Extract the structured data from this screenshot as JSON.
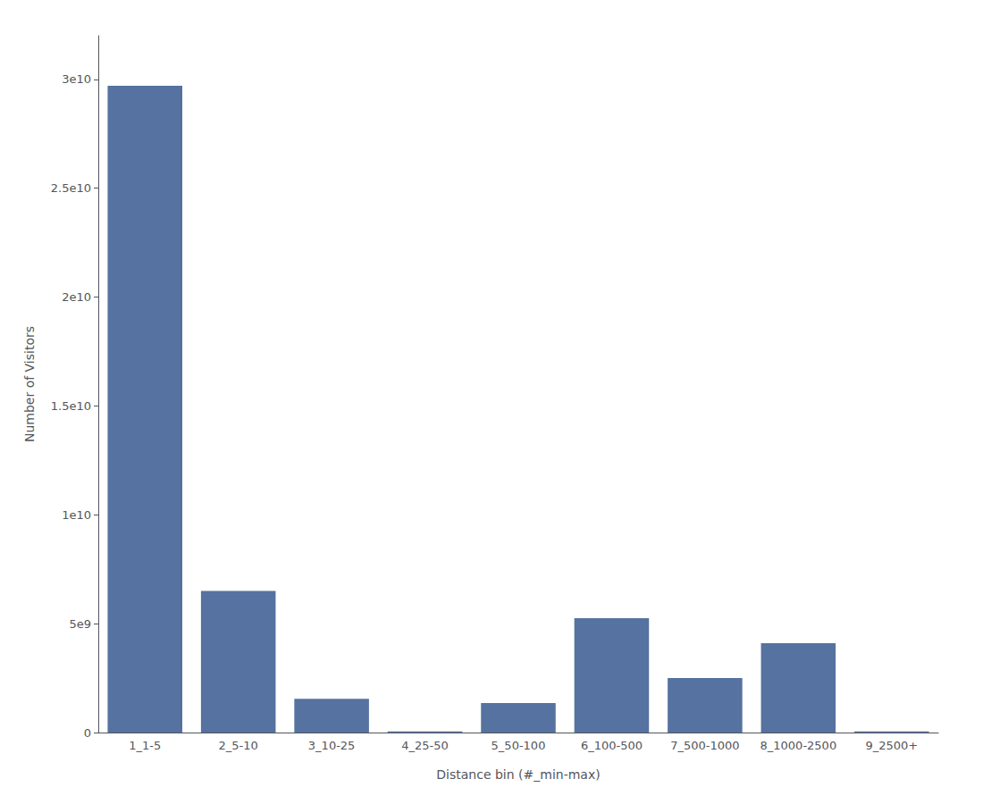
{
  "chart_data": {
    "type": "bar",
    "categories": [
      "1_1-5",
      "2_5-10",
      "3_10-25",
      "4_25-50",
      "5_50-100",
      "6_100-500",
      "7_500-1000",
      "8_1000-2500",
      "9_2500+"
    ],
    "values": [
      29700000000.0,
      6500000000.0,
      1550000000.0,
      50000000.0,
      1350000000.0,
      5250000000.0,
      2500000000.0,
      4100000000.0,
      50000000.0
    ],
    "color": "#5572a0",
    "xlabel": "Distance bin (#_min-max)",
    "ylabel": "Number of Visitors",
    "ylim": [
      0,
      32000000000.0
    ],
    "yticks": [
      0,
      {
        "value": 5000000000.0,
        "label": "5e9"
      },
      {
        "value": 10000000000.0,
        "label": "1e10"
      },
      {
        "value": 15000000000.0,
        "label": "1.5e10"
      },
      {
        "value": 20000000000.0,
        "label": "2e10"
      },
      {
        "value": 25000000000.0,
        "label": "2.5e10"
      },
      {
        "value": 30000000000.0,
        "label": "3e10"
      }
    ],
    "grid": false
  }
}
